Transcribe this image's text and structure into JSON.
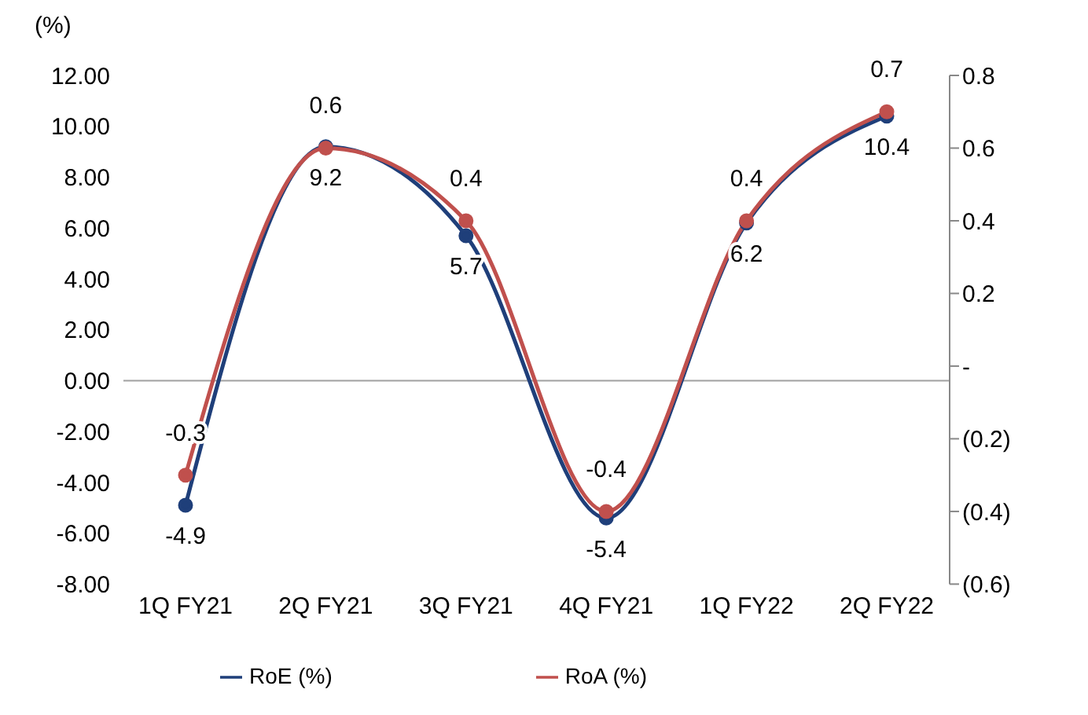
{
  "chart_data": {
    "type": "line",
    "ylabel": "(%)",
    "categories": [
      "1Q FY21",
      "2Q FY21",
      "3Q FY21",
      "4Q FY21",
      "1Q FY22",
      "2Q FY22"
    ],
    "series": [
      {
        "name": "RoE (%)",
        "color": "#1f3f7a",
        "values": [
          -4.9,
          9.2,
          5.7,
          -5.4,
          6.2,
          10.4
        ]
      },
      {
        "name": "RoA (%)",
        "color": "#c0504d",
        "axis": "y2",
        "values": [
          -0.3,
          0.6,
          0.4,
          -0.4,
          0.4,
          0.7
        ]
      }
    ],
    "ylim": [
      -8,
      12
    ],
    "yticks": [
      {
        "value": -8,
        "label": "-8.00"
      },
      {
        "value": -6,
        "label": "-6.00"
      },
      {
        "value": -4,
        "label": "-4.00"
      },
      {
        "value": -2,
        "label": "-2.00"
      },
      {
        "value": 0,
        "label": "0.00"
      },
      {
        "value": 2,
        "label": "2.00"
      },
      {
        "value": 4,
        "label": "4.00"
      },
      {
        "value": 6,
        "label": "6.00"
      },
      {
        "value": 8,
        "label": "8.00"
      },
      {
        "value": 10,
        "label": "10.00"
      },
      {
        "value": 12,
        "label": "12.00"
      }
    ],
    "y2lim": [
      -0.6,
      0.8
    ],
    "y2ticks": [
      {
        "value": -0.6,
        "label": "(0.6)"
      },
      {
        "value": -0.4,
        "label": "(0.4)"
      },
      {
        "value": -0.2,
        "label": "(0.2)"
      },
      {
        "value": 0,
        "label": "-"
      },
      {
        "value": 0.2,
        "label": "0.2"
      },
      {
        "value": 0.4,
        "label": "0.4"
      },
      {
        "value": 0.6,
        "label": "0.6"
      },
      {
        "value": 0.8,
        "label": "0.8"
      }
    ],
    "ref_lines": [
      {
        "axis": "y",
        "value": 0,
        "color": "#a0a0a0"
      }
    ],
    "data_labels": true,
    "marker": "circle",
    "line_style": "solid",
    "legend": "bottom",
    "grid": false
  }
}
